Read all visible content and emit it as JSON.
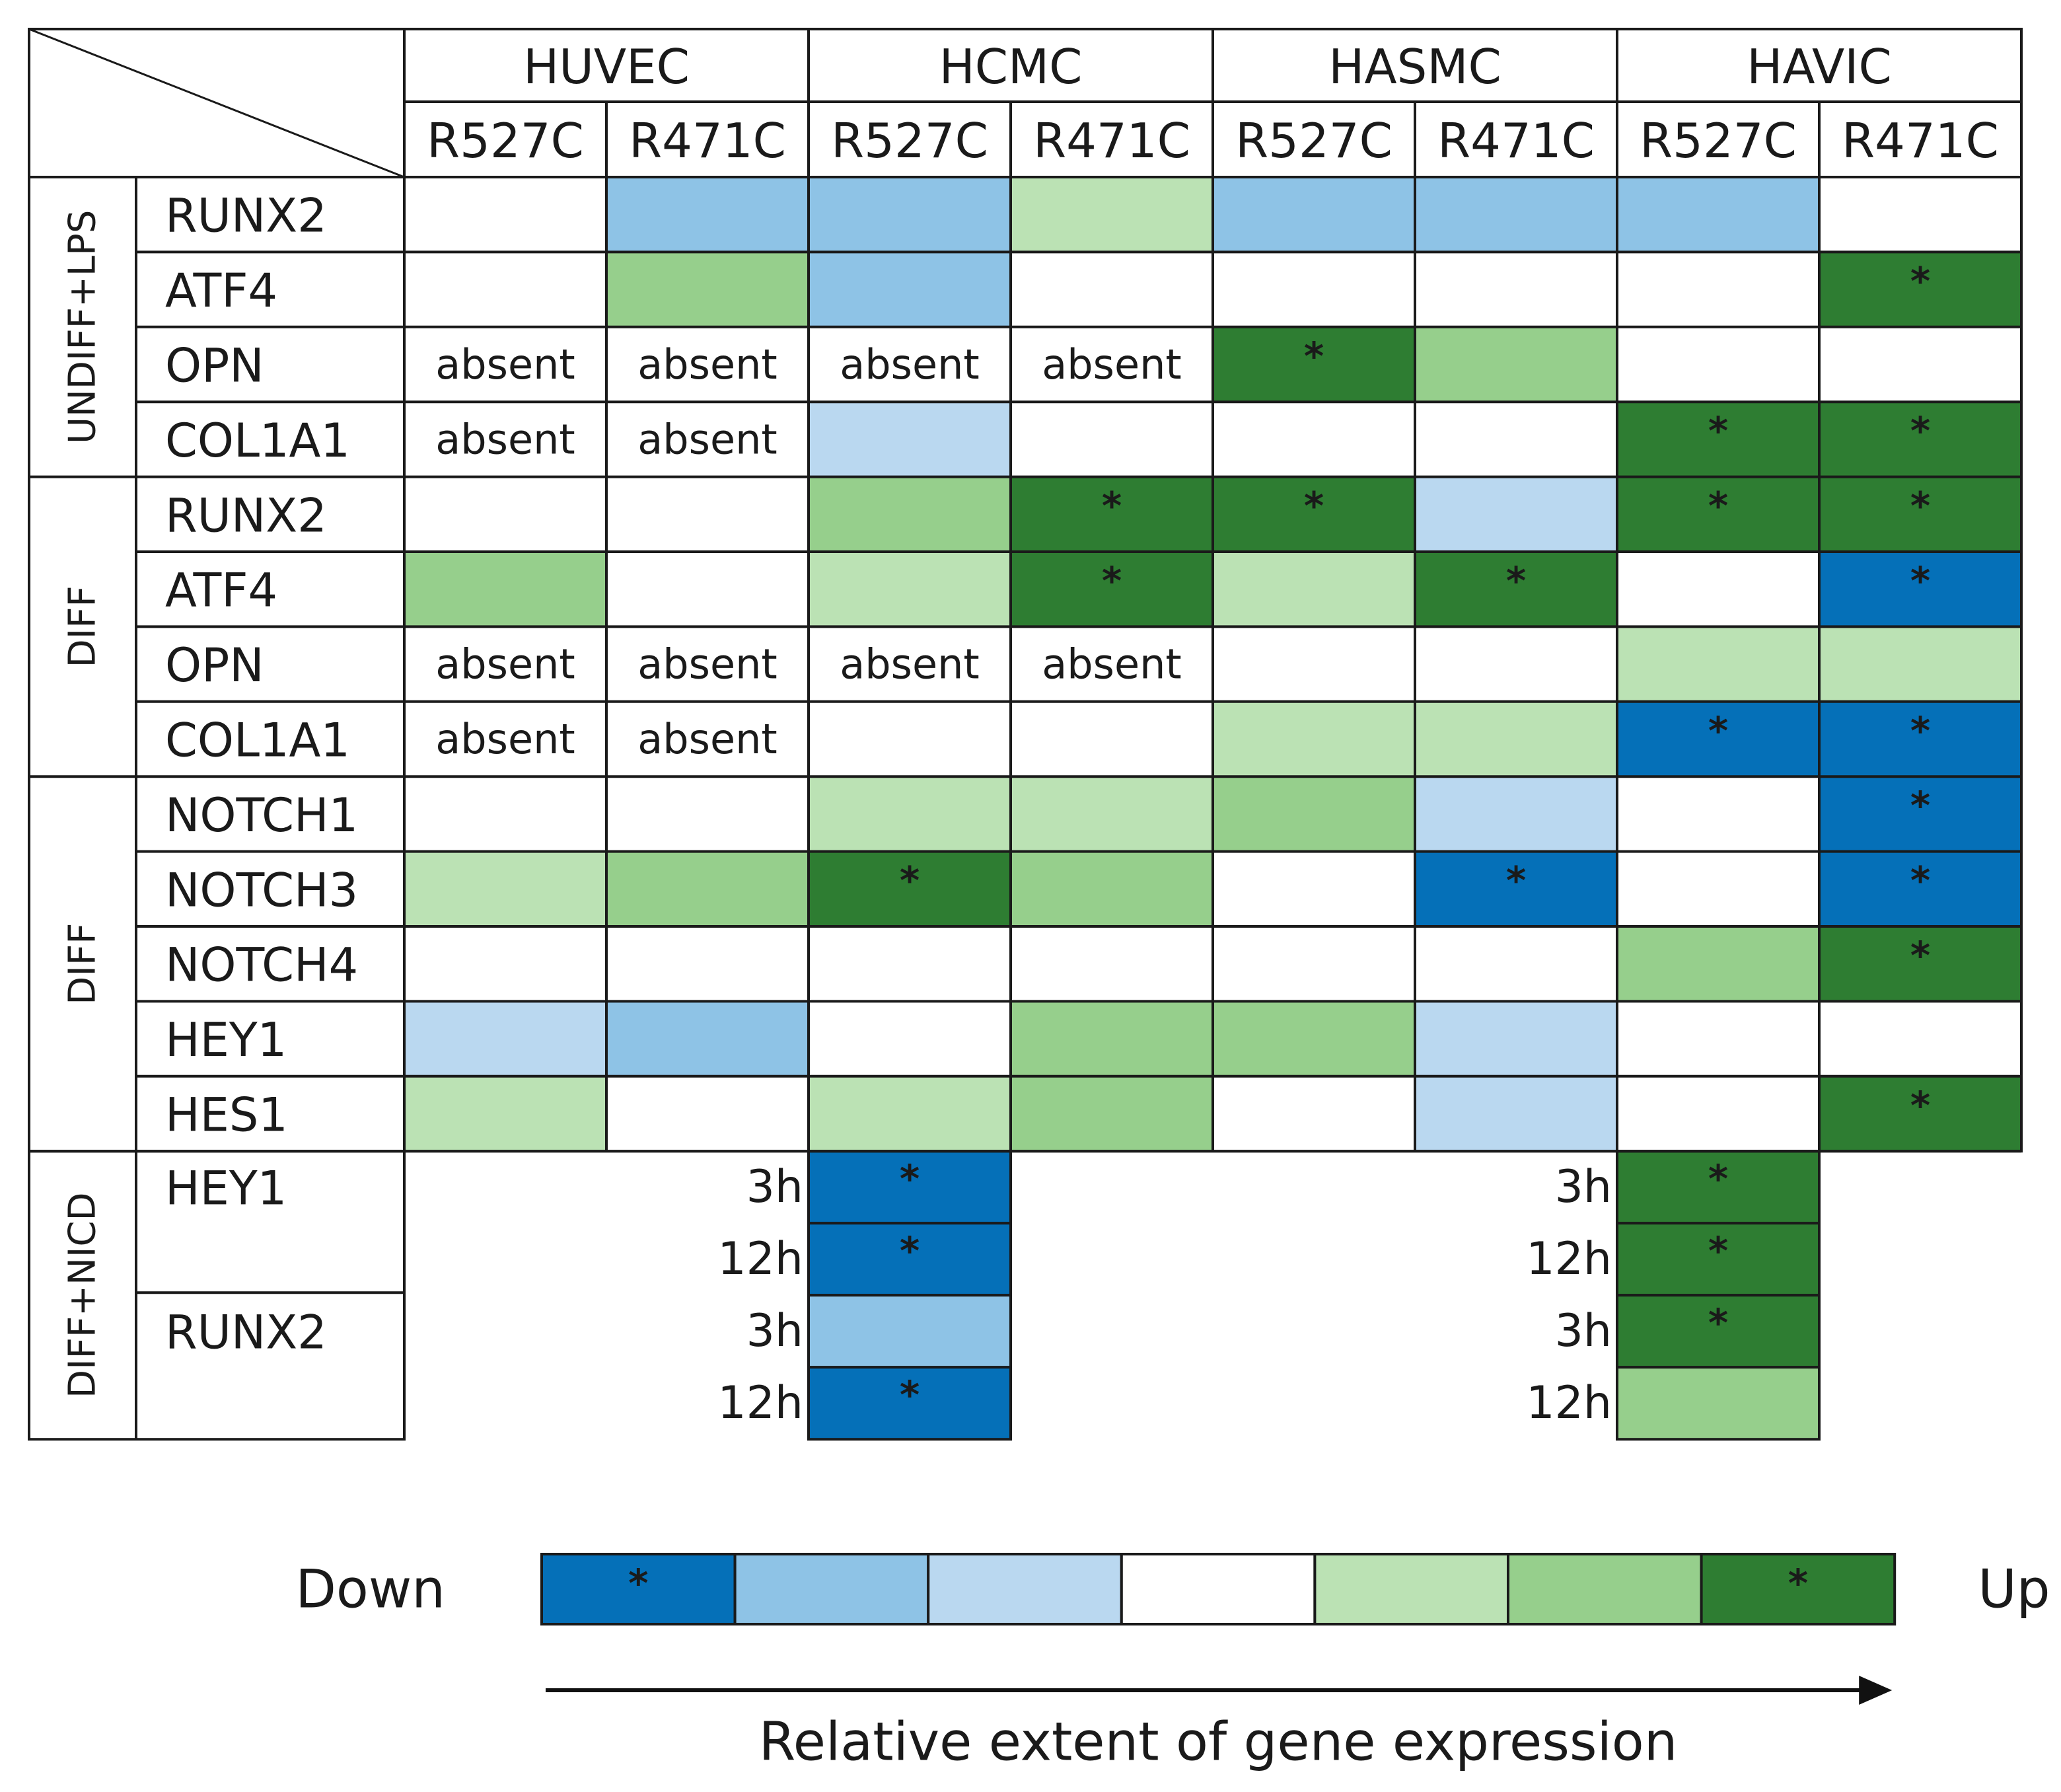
{
  "chart_data": {
    "type": "heatmap",
    "cell_lines": [
      "HUVEC",
      "HCMC",
      "HASMC",
      "HAVIC"
    ],
    "mutations": [
      "R527C",
      "R471C"
    ],
    "scale": {
      "down_label": "Down",
      "up_label": "Up",
      "axis_label": "Relative extent of gene expression",
      "levels": [
        {
          "level": -3,
          "color": "#0570b8",
          "star": true
        },
        {
          "level": -2,
          "color": "#8ec3e6",
          "star": false
        },
        {
          "level": -1,
          "color": "#bad8f0",
          "star": false
        },
        {
          "level": 0,
          "color": "#ffffff",
          "star": false
        },
        {
          "level": 1,
          "color": "#bbe2b4",
          "star": false
        },
        {
          "level": 2,
          "color": "#96cf8c",
          "star": false
        },
        {
          "level": 3,
          "color": "#2e7d32",
          "star": true
        }
      ]
    },
    "absent_label": "absent",
    "star_label": "*",
    "groups": [
      {
        "label": "UNDIFF+LPS",
        "rows": [
          {
            "gene": "RUNX2",
            "values": [
              0,
              -2,
              -2,
              1,
              -2,
              -2,
              -2,
              0
            ]
          },
          {
            "gene": "ATF4",
            "values": [
              0,
              2,
              -2,
              0,
              0,
              0,
              0,
              3
            ]
          },
          {
            "gene": "OPN",
            "values": [
              "absent",
              "absent",
              "absent",
              "absent",
              3,
              2,
              0,
              0
            ]
          },
          {
            "gene": "COL1A1",
            "values": [
              "absent",
              "absent",
              -1,
              0,
              0,
              0,
              3,
              3
            ]
          }
        ]
      },
      {
        "label": "DIFF",
        "rows": [
          {
            "gene": "RUNX2",
            "values": [
              0,
              0,
              2,
              3,
              3,
              -1,
              3,
              3
            ]
          },
          {
            "gene": "ATF4",
            "values": [
              2,
              0,
              1,
              3,
              1,
              3,
              0,
              -3
            ]
          },
          {
            "gene": "OPN",
            "values": [
              "absent",
              "absent",
              "absent",
              "absent",
              0,
              0,
              1,
              1
            ]
          },
          {
            "gene": "COL1A1",
            "values": [
              "absent",
              "absent",
              0,
              0,
              1,
              1,
              -3,
              -3
            ]
          }
        ]
      },
      {
        "label": "DIFF",
        "rows": [
          {
            "gene": "NOTCH1",
            "values": [
              0,
              0,
              1,
              1,
              2,
              -1,
              0,
              -3
            ]
          },
          {
            "gene": "NOTCH3",
            "values": [
              1,
              2,
              3,
              2,
              0,
              -3,
              0,
              -3
            ]
          },
          {
            "gene": "NOTCH4",
            "values": [
              0,
              0,
              0,
              0,
              0,
              0,
              2,
              3
            ]
          },
          {
            "gene": "HEY1",
            "values": [
              -1,
              -2,
              0,
              2,
              2,
              -1,
              0,
              0
            ]
          },
          {
            "gene": "HES1",
            "values": [
              1,
              0,
              1,
              2,
              0,
              -1,
              0,
              3
            ]
          }
        ]
      }
    ],
    "nicd": {
      "label": "DIFF+NICD",
      "genes": [
        {
          "gene": "HEY1",
          "rows": [
            {
              "time": "3h",
              "hcmc": -3,
              "havic": 3
            },
            {
              "time": "12h",
              "hcmc": -3,
              "havic": 3
            }
          ]
        },
        {
          "gene": "RUNX2",
          "rows": [
            {
              "time": "3h",
              "hcmc": -2,
              "havic": 3
            },
            {
              "time": "12h",
              "hcmc": -3,
              "havic": 2
            }
          ]
        }
      ]
    }
  }
}
